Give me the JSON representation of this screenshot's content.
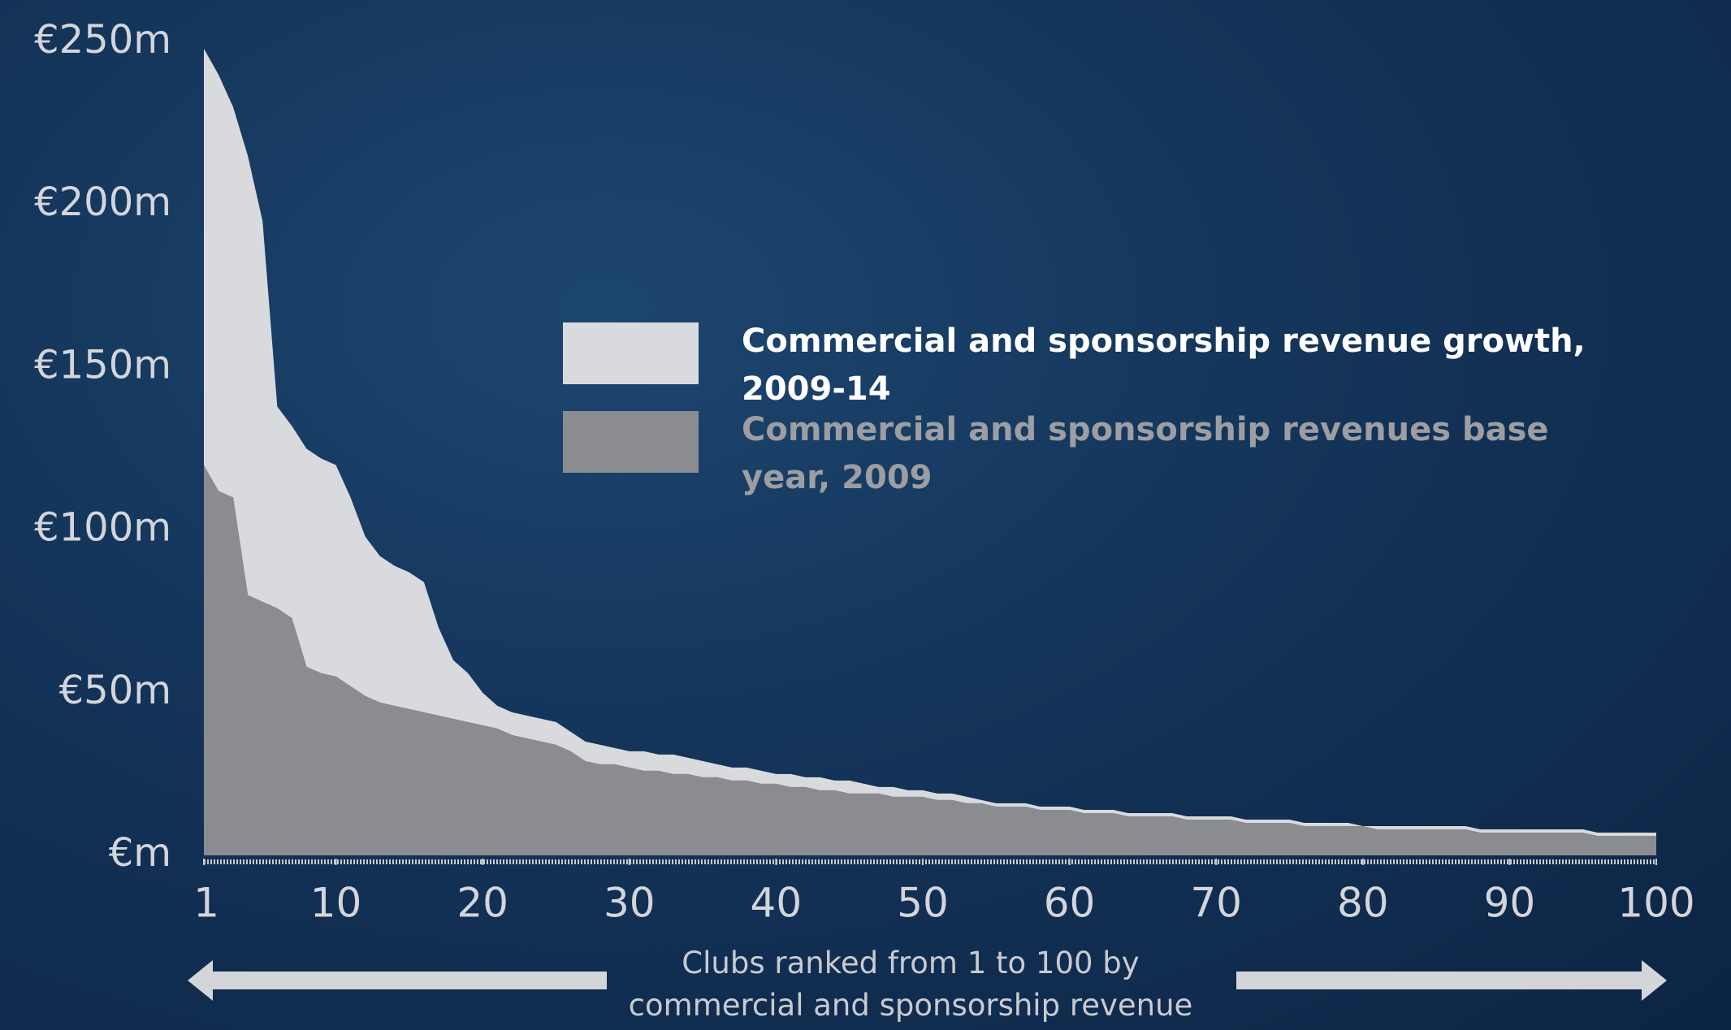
{
  "chart_data": {
    "type": "stacked_area",
    "x_label": "Clubs ranked from 1 to 100 by commercial and sponsorship revenue",
    "x": [
      1,
      2,
      3,
      4,
      5,
      6,
      7,
      8,
      9,
      10,
      11,
      12,
      13,
      14,
      15,
      16,
      17,
      18,
      19,
      20,
      21,
      22,
      23,
      24,
      25,
      26,
      27,
      28,
      29,
      30,
      31,
      32,
      33,
      34,
      35,
      36,
      37,
      38,
      39,
      40,
      41,
      42,
      43,
      44,
      45,
      46,
      47,
      48,
      49,
      50,
      51,
      52,
      53,
      54,
      55,
      56,
      57,
      58,
      59,
      60,
      61,
      62,
      63,
      64,
      65,
      66,
      67,
      68,
      69,
      70,
      71,
      72,
      73,
      74,
      75,
      76,
      77,
      78,
      79,
      80,
      81,
      82,
      83,
      84,
      85,
      86,
      87,
      88,
      89,
      90,
      91,
      92,
      93,
      94,
      95,
      96,
      97,
      98,
      99,
      100
    ],
    "xlim": [
      1,
      100
    ],
    "xticks": [
      1,
      10,
      20,
      30,
      40,
      50,
      60,
      70,
      80,
      90,
      100
    ],
    "ylim": [
      0,
      250
    ],
    "yticks": [
      {
        "value": 0,
        "label": "€m"
      },
      {
        "value": 50,
        "label": "€50m"
      },
      {
        "value": 100,
        "label": "€100m"
      },
      {
        "value": 150,
        "label": "€150m"
      },
      {
        "value": 200,
        "label": "€200m"
      },
      {
        "value": 250,
        "label": "€250m"
      }
    ],
    "series": [
      {
        "name": "Commercial and sponsorship revenues base year, 2009",
        "color": "#8b8c8f",
        "values": [
          120,
          112,
          110,
          80,
          78,
          76,
          73,
          58,
          56,
          55,
          52,
          49,
          47,
          46,
          45,
          44,
          43,
          42,
          41,
          40,
          39,
          37,
          36,
          35,
          34,
          32,
          29,
          28,
          28,
          27,
          26,
          26,
          25,
          25,
          24,
          24,
          23,
          23,
          22,
          22,
          21,
          21,
          20,
          20,
          19,
          19,
          19,
          18,
          18,
          18,
          17,
          17,
          16,
          16,
          15,
          15,
          15,
          14,
          14,
          14,
          13,
          13,
          13,
          12,
          12,
          12,
          12,
          11,
          11,
          11,
          11,
          10,
          10,
          10,
          10,
          9,
          9,
          9,
          9,
          9,
          8,
          8,
          8,
          8,
          8,
          8,
          8,
          7,
          7,
          7,
          7,
          7,
          7,
          7,
          7,
          6,
          6,
          6,
          6,
          6
        ]
      },
      {
        "name": "Commercial and sponsorship revenue growth, 2009-14",
        "color": "#d9dadd",
        "values": [
          128,
          128,
          120,
          135,
          117,
          62,
          59,
          67,
          66,
          65,
          58,
          49,
          45,
          43,
          42,
          40,
          27,
          18,
          15,
          10,
          7,
          7,
          7,
          7,
          7,
          6,
          6,
          6,
          5,
          5,
          6,
          5,
          6,
          5,
          5,
          4,
          4,
          4,
          4,
          3,
          4,
          3,
          4,
          3,
          4,
          3,
          2,
          3,
          2,
          2,
          2,
          2,
          2,
          1,
          1,
          1,
          1,
          1,
          1,
          1,
          1,
          1,
          1,
          1,
          1,
          1,
          1,
          1,
          1,
          1,
          1,
          1,
          1,
          1,
          1,
          1,
          1,
          1,
          1,
          0,
          1,
          1,
          1,
          1,
          1,
          1,
          1,
          1,
          1,
          1,
          1,
          1,
          1,
          1,
          1,
          1,
          1,
          1,
          1,
          1
        ]
      }
    ]
  }
}
